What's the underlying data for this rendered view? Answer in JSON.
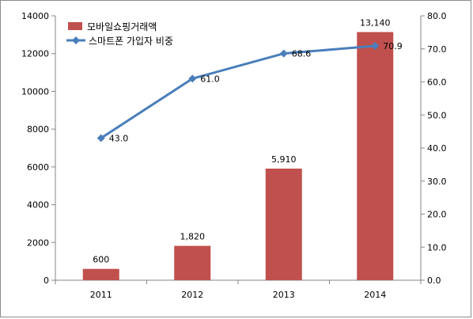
{
  "chart_data": {
    "type": "bar",
    "categories": [
      "2011",
      "2012",
      "2013",
      "2014"
    ],
    "series": [
      {
        "name": "모바일쇼핑거래액",
        "chart": "bar",
        "axis": "left",
        "color": "#c0504d",
        "values": [
          600,
          1820,
          5910,
          13140
        ],
        "data_labels": [
          "600",
          "1,820",
          "5,910",
          "13,140"
        ]
      },
      {
        "name": "스마트폰 가입자 비중",
        "chart": "line",
        "axis": "right",
        "color": "#4a7ebb",
        "marker": "diamond",
        "values": [
          43.0,
          61.0,
          68.6,
          70.9
        ],
        "data_labels": [
          "43.0",
          "61.0",
          "68.6",
          "70.9"
        ]
      }
    ],
    "y_left": {
      "ylim": [
        0,
        14000
      ],
      "ticks": [
        "0",
        "2000",
        "4000",
        "6000",
        "8000",
        "10000",
        "12000",
        "14000"
      ]
    },
    "y_right": {
      "ylim": [
        0,
        80
      ],
      "ticks": [
        "0.0",
        "10.0",
        "20.0",
        "30.0",
        "40.0",
        "50.0",
        "60.0",
        "70.0",
        "80.0"
      ]
    },
    "title": "",
    "xlabel": "",
    "ylabel": "",
    "grid": false,
    "legend_position": "top-left"
  }
}
